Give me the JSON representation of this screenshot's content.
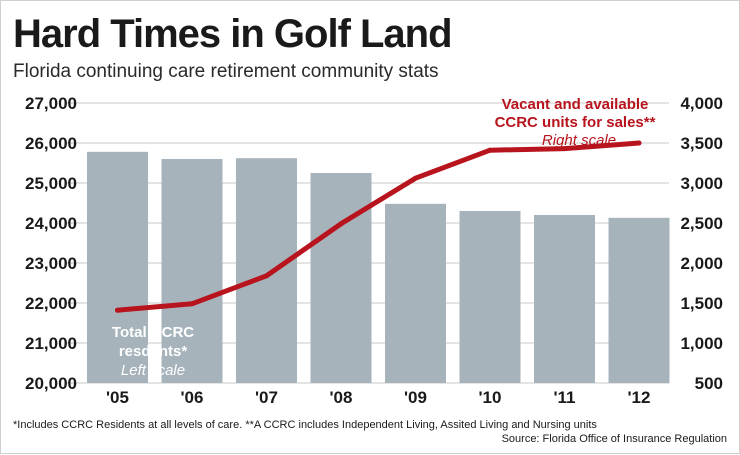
{
  "chart_data": {
    "type": "bar",
    "title": "Hard Times in Golf Land",
    "subtitle": "Florida continuing care retirement community stats",
    "categories": [
      "'05",
      "'06",
      "'07",
      "'08",
      "'09",
      "'10",
      "'11",
      "'12"
    ],
    "series": [
      {
        "name": "Total CCRC resdents*",
        "type": "bar",
        "axis": "left",
        "color": "#a7b3bb",
        "values": [
          25780,
          25600,
          25620,
          25250,
          24480,
          24300,
          24200,
          24130
        ]
      },
      {
        "name": "Vacant and available CCRC units for sales**",
        "type": "line",
        "axis": "right",
        "color": "#b8141d",
        "values": [
          1410,
          1490,
          1840,
          2490,
          3060,
          3410,
          3430,
          3500
        ]
      }
    ],
    "left_axis": {
      "ylim": [
        20000,
        27000
      ],
      "ticks": [
        "20,000",
        "21,000",
        "22,000",
        "23,000",
        "24,000",
        "25,000",
        "26,000",
        "27,000"
      ]
    },
    "right_axis": {
      "ylim": [
        500,
        4000
      ],
      "ticks": [
        "500",
        "1,000",
        "1,500",
        "2,000",
        "2,500",
        "3,000",
        "3,500",
        "4,000"
      ]
    },
    "grid": true,
    "annotations": {
      "line_label_1": "Vacant and available",
      "line_label_2": "CCRC units for sales**",
      "line_scale": "Right scale",
      "bar_label_1": "Total CCRC",
      "bar_label_2": "resdents*",
      "bar_scale": "Left scale"
    },
    "footnote": "*Includes CCRC Residents at all levels of care.  **A CCRC includes Independent Living, Assited Living and Nursing units",
    "source": "Source: Florida Office of Insurance Regulation"
  }
}
